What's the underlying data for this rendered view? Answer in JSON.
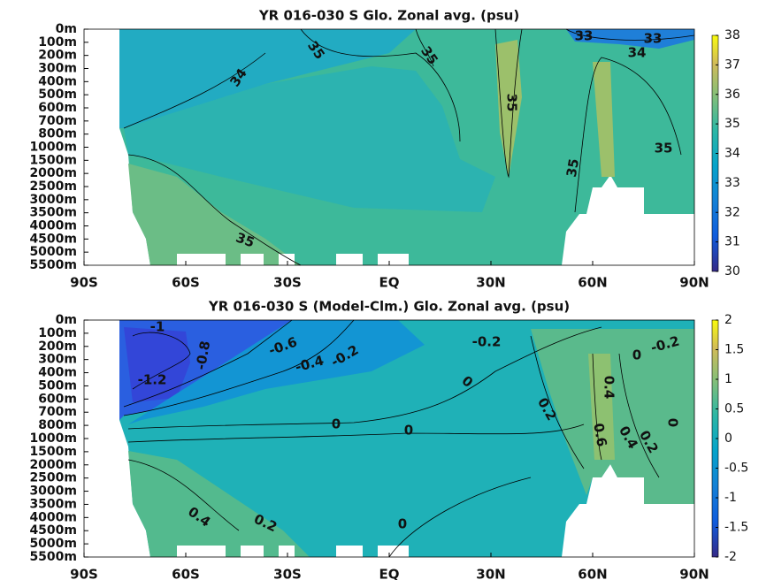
{
  "chart_data": [
    {
      "type": "contour",
      "title": "YR 016-030 S Glo. Zonal avg. (psu)",
      "xlim": [
        -90,
        90
      ],
      "xticks": [
        {
          "value": -90,
          "label": "90S"
        },
        {
          "value": -60,
          "label": "60S"
        },
        {
          "value": -30,
          "label": "30S"
        },
        {
          "value": 0,
          "label": "EQ"
        },
        {
          "value": 30,
          "label": "30N"
        },
        {
          "value": 60,
          "label": "60N"
        },
        {
          "value": 90,
          "label": "90N"
        }
      ],
      "y_levels": [
        "0m",
        "100m",
        "200m",
        "300m",
        "400m",
        "500m",
        "600m",
        "700m",
        "800m",
        "1000m",
        "1500m",
        "2000m",
        "2500m",
        "3000m",
        "3500m",
        "4000m",
        "4500m",
        "5000m",
        "5500m"
      ],
      "clim": [
        30,
        38
      ],
      "cticks": [
        30,
        31,
        32,
        33,
        34,
        35,
        36,
        37,
        38
      ],
      "contour_labels": [
        35,
        35,
        34,
        33,
        33,
        34,
        35,
        35,
        35,
        35
      ]
    },
    {
      "type": "contour",
      "title": "YR 016-030 S (Model-Clm.) Glo. Zonal avg. (psu)",
      "xlim": [
        -90,
        90
      ],
      "xticks": [
        {
          "value": -90,
          "label": "90S"
        },
        {
          "value": -60,
          "label": "60S"
        },
        {
          "value": -30,
          "label": "30S"
        },
        {
          "value": 0,
          "label": "EQ"
        },
        {
          "value": 30,
          "label": "30N"
        },
        {
          "value": 60,
          "label": "60N"
        },
        {
          "value": 90,
          "label": "90N"
        }
      ],
      "y_levels": [
        "0m",
        "100m",
        "200m",
        "300m",
        "400m",
        "500m",
        "600m",
        "700m",
        "800m",
        "1000m",
        "1500m",
        "2000m",
        "2500m",
        "3000m",
        "3500m",
        "4000m",
        "4500m",
        "5000m",
        "5500m"
      ],
      "clim": [
        -2,
        2
      ],
      "cticks": [
        -2,
        -1.5,
        -1,
        -0.5,
        0,
        0.5,
        1,
        1.5,
        2
      ],
      "contour_labels": [
        -1,
        -0.8,
        -0.6,
        -0.4,
        -0.2,
        -1.2,
        -0.2,
        0,
        0,
        0,
        0.2,
        0.4,
        0.6,
        0.4,
        0.2,
        0,
        0.4,
        0.2,
        0,
        -0.2,
        0
      ]
    }
  ]
}
